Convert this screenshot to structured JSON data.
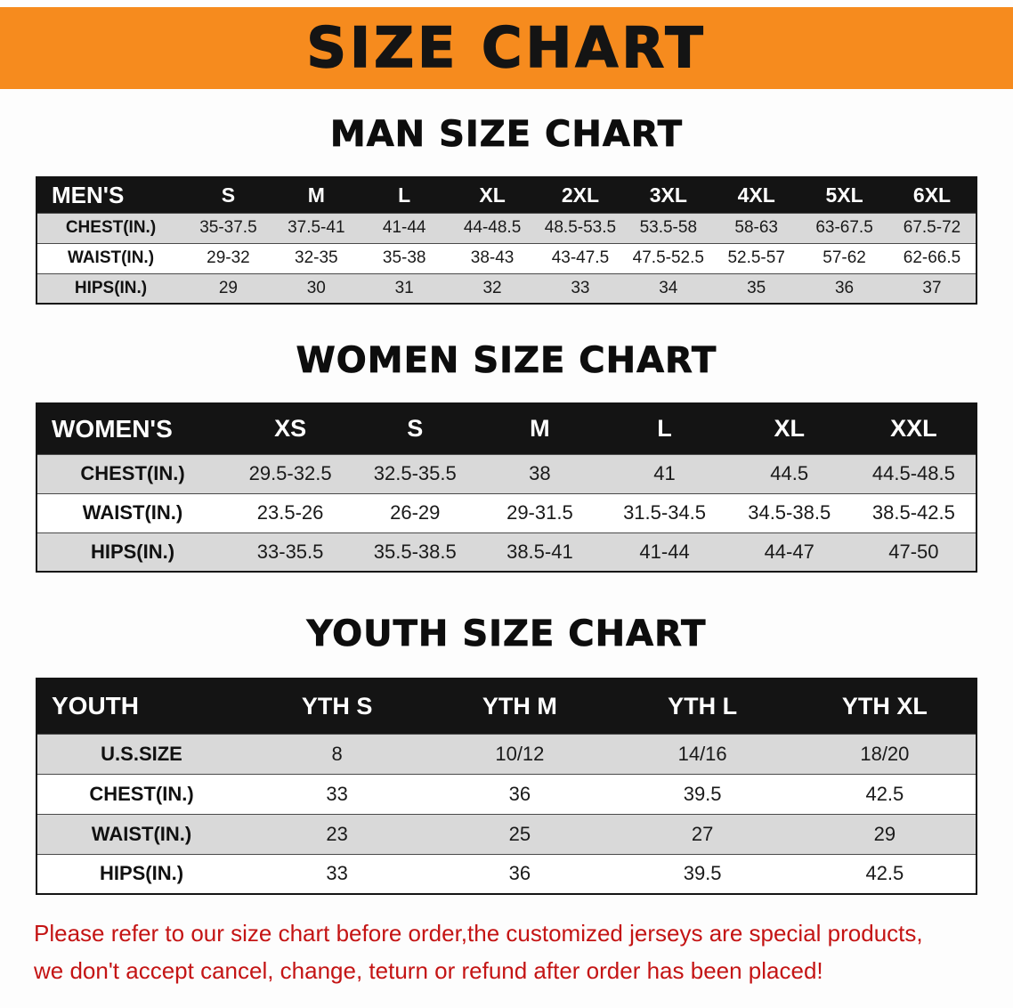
{
  "banner": {
    "title": "SIZE CHART"
  },
  "sections": [
    {
      "heading": "MAN SIZE CHART",
      "table": {
        "header": [
          "MEN'S",
          "S",
          "M",
          "L",
          "XL",
          "2XL",
          "3XL",
          "4XL",
          "5XL",
          "6XL"
        ],
        "rows": [
          [
            "CHEST(IN.)",
            "35-37.5",
            "37.5-41",
            "41-44",
            "44-48.5",
            "48.5-53.5",
            "53.5-58",
            "58-63",
            "63-67.5",
            "67.5-72"
          ],
          [
            "WAIST(IN.)",
            "29-32",
            "32-35",
            "35-38",
            "38-43",
            "43-47.5",
            "47.5-52.5",
            "52.5-57",
            "57-62",
            "62-66.5"
          ],
          [
            "HIPS(IN.)",
            "29",
            "30",
            "31",
            "32",
            "33",
            "34",
            "35",
            "36",
            "37"
          ]
        ]
      }
    },
    {
      "heading": "WOMEN SIZE CHART",
      "table": {
        "header": [
          "WOMEN'S",
          "XS",
          "S",
          "M",
          "L",
          "XL",
          "XXL"
        ],
        "rows": [
          [
            "CHEST(IN.)",
            "29.5-32.5",
            "32.5-35.5",
            "38",
            "41",
            "44.5",
            "44.5-48.5"
          ],
          [
            "WAIST(IN.)",
            "23.5-26",
            "26-29",
            "29-31.5",
            "31.5-34.5",
            "34.5-38.5",
            "38.5-42.5"
          ],
          [
            "HIPS(IN.)",
            "33-35.5",
            "35.5-38.5",
            "38.5-41",
            "41-44",
            "44-47",
            "47-50"
          ]
        ]
      }
    },
    {
      "heading": "YOUTH SIZE CHART",
      "table": {
        "header": [
          "YOUTH",
          "YTH S",
          "YTH M",
          "YTH L",
          "YTH XL"
        ],
        "rows": [
          [
            "U.S.SIZE",
            "8",
            "10/12",
            "14/16",
            "18/20"
          ],
          [
            "CHEST(IN.)",
            "33",
            "36",
            "39.5",
            "42.5"
          ],
          [
            "WAIST(IN.)",
            "23",
            "25",
            "27",
            "29"
          ],
          [
            "HIPS(IN.)",
            "33",
            "36",
            "39.5",
            "42.5"
          ]
        ]
      }
    }
  ],
  "disclaimer": {
    "line1": "Please refer to our size chart before order,the customized jerseys are special products,",
    "line2": "we don't accept cancel, change, teturn or refund after order has been placed!"
  },
  "colors": {
    "banner_bg": "#F68B1E",
    "header_bg": "#141414",
    "stripe_bg": "#D9D9D9",
    "disclaimer_text": "#C41414"
  }
}
